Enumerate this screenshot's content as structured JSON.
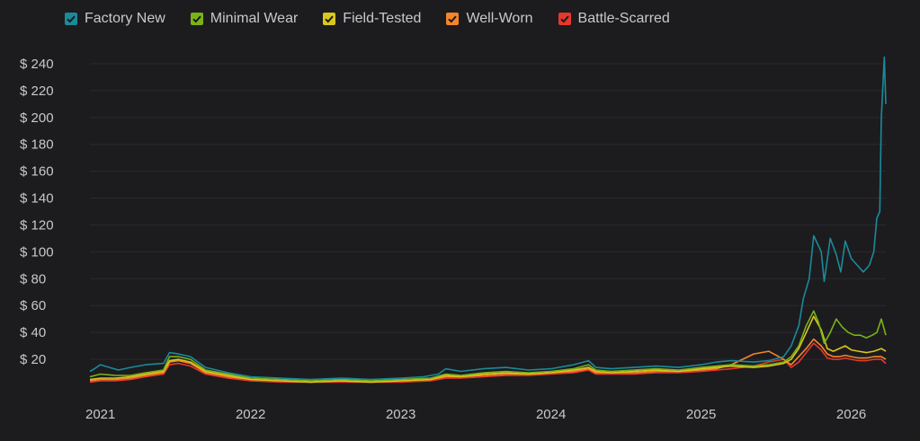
{
  "chart_data": {
    "type": "line",
    "title": "",
    "xlabel": "",
    "ylabel": "",
    "ylim": [
      0,
      250
    ],
    "grid": true,
    "legend_position": "top-left",
    "y_ticks": [
      "$ 20",
      "$ 40",
      "$ 60",
      "$ 80",
      "$ 100",
      "$ 120",
      "$ 140",
      "$ 160",
      "$ 180",
      "$ 200",
      "$ 220",
      "$ 240"
    ],
    "y_tick_values": [
      20,
      40,
      60,
      80,
      100,
      120,
      140,
      160,
      180,
      200,
      220,
      240
    ],
    "x_ticks": [
      "2021",
      "2022",
      "2023",
      "2024",
      "2025",
      "2026"
    ],
    "x_tick_values": [
      2021.0,
      2022.0,
      2023.0,
      2024.0,
      2025.0,
      2026.0
    ],
    "xlim": [
      2020.93,
      2026.23
    ],
    "series": [
      {
        "name": "Factory New",
        "color": "#1b8a9a",
        "x": [
          2020.93,
          2020.96,
          2021.0,
          2021.06,
          2021.12,
          2021.2,
          2021.3,
          2021.42,
          2021.46,
          2021.52,
          2021.6,
          2021.7,
          2021.85,
          2022.0,
          2022.2,
          2022.4,
          2022.6,
          2022.8,
          2023.0,
          2023.15,
          2023.25,
          2023.3,
          2023.4,
          2023.55,
          2023.7,
          2023.85,
          2024.0,
          2024.15,
          2024.25,
          2024.3,
          2024.4,
          2024.55,
          2024.7,
          2024.85,
          2025.0,
          2025.1,
          2025.2,
          2025.35,
          2025.45,
          2025.55,
          2025.6,
          2025.65,
          2025.68,
          2025.72,
          2025.75,
          2025.8,
          2025.82,
          2025.86,
          2025.9,
          2025.93,
          2025.96,
          2026.0,
          2026.04,
          2026.08,
          2026.12,
          2026.15,
          2026.17,
          2026.19,
          2026.2,
          2026.22,
          2026.23
        ],
        "y": [
          11,
          13,
          16,
          14,
          12,
          14,
          16,
          17,
          25,
          24,
          22,
          14,
          10,
          7,
          6,
          5,
          6,
          5,
          6,
          7,
          9,
          13,
          11,
          13,
          14,
          12,
          13,
          16,
          19,
          14,
          13,
          14,
          15,
          14,
          16,
          18,
          19,
          18,
          19,
          22,
          30,
          45,
          65,
          80,
          112,
          100,
          78,
          110,
          98,
          85,
          108,
          95,
          90,
          85,
          90,
          100,
          125,
          130,
          200,
          245,
          210
        ]
      },
      {
        "name": "Minimal Wear",
        "color": "#7ab317",
        "x": [
          2020.93,
          2021.0,
          2021.1,
          2021.2,
          2021.3,
          2021.42,
          2021.46,
          2021.52,
          2021.6,
          2021.7,
          2021.85,
          2022.0,
          2022.2,
          2022.4,
          2022.6,
          2022.8,
          2023.0,
          2023.2,
          2023.3,
          2023.4,
          2023.55,
          2023.7,
          2023.85,
          2024.0,
          2024.15,
          2024.25,
          2024.3,
          2024.4,
          2024.55,
          2024.7,
          2024.85,
          2025.0,
          2025.1,
          2025.2,
          2025.35,
          2025.45,
          2025.55,
          2025.6,
          2025.65,
          2025.7,
          2025.75,
          2025.78,
          2025.82,
          2025.86,
          2025.9,
          2025.94,
          2025.98,
          2026.02,
          2026.06,
          2026.1,
          2026.14,
          2026.17,
          2026.2,
          2026.23
        ],
        "y": [
          7,
          9,
          8,
          8,
          10,
          12,
          22,
          22,
          20,
          12,
          9,
          6,
          5,
          4,
          5,
          4,
          5,
          6,
          9,
          8,
          10,
          11,
          10,
          11,
          13,
          16,
          12,
          11,
          12,
          13,
          12,
          14,
          15,
          16,
          15,
          16,
          18,
          22,
          30,
          45,
          56,
          48,
          32,
          40,
          50,
          44,
          40,
          38,
          38,
          36,
          38,
          40,
          50,
          38
        ]
      },
      {
        "name": "Field-Tested",
        "color": "#d9c71e",
        "x": [
          2020.93,
          2021.0,
          2021.1,
          2021.2,
          2021.3,
          2021.42,
          2021.46,
          2021.52,
          2021.6,
          2021.7,
          2021.85,
          2022.0,
          2022.2,
          2022.4,
          2022.6,
          2022.8,
          2023.0,
          2023.2,
          2023.3,
          2023.4,
          2023.55,
          2023.7,
          2023.85,
          2024.0,
          2024.15,
          2024.25,
          2024.3,
          2024.4,
          2024.55,
          2024.7,
          2024.85,
          2025.0,
          2025.1,
          2025.2,
          2025.35,
          2025.45,
          2025.55,
          2025.6,
          2025.65,
          2025.7,
          2025.75,
          2025.8,
          2025.84,
          2025.88,
          2025.92,
          2025.96,
          2026.0,
          2026.05,
          2026.1,
          2026.15,
          2026.2,
          2026.23
        ],
        "y": [
          5,
          6,
          6,
          7,
          9,
          11,
          19,
          20,
          18,
          11,
          8,
          5,
          4,
          3,
          4,
          3,
          4,
          5,
          8,
          7,
          9,
          10,
          9,
          10,
          12,
          14,
          11,
          10,
          11,
          12,
          11,
          13,
          14,
          15,
          14,
          15,
          17,
          20,
          28,
          40,
          52,
          42,
          28,
          26,
          28,
          30,
          27,
          26,
          25,
          26,
          28,
          26
        ]
      },
      {
        "name": "Well-Worn",
        "color": "#f5852a",
        "x": [
          2020.93,
          2021.0,
          2021.1,
          2021.2,
          2021.3,
          2021.42,
          2021.46,
          2021.52,
          2021.6,
          2021.7,
          2021.85,
          2022.0,
          2022.2,
          2022.4,
          2022.6,
          2022.8,
          2023.0,
          2023.2,
          2023.3,
          2023.4,
          2023.55,
          2023.7,
          2023.85,
          2024.0,
          2024.15,
          2024.25,
          2024.3,
          2024.4,
          2024.55,
          2024.7,
          2024.85,
          2025.0,
          2025.1,
          2025.2,
          2025.35,
          2025.45,
          2025.55,
          2025.6,
          2025.65,
          2025.7,
          2025.75,
          2025.8,
          2025.84,
          2025.88,
          2025.92,
          2025.96,
          2026.0,
          2026.05,
          2026.1,
          2026.15,
          2026.2,
          2026.23
        ],
        "y": [
          4,
          5,
          5,
          6,
          8,
          10,
          18,
          19,
          17,
          10,
          7,
          5,
          4,
          3,
          4,
          3,
          4,
          5,
          7,
          7,
          8,
          9,
          9,
          10,
          11,
          13,
          10,
          10,
          10,
          11,
          11,
          12,
          13,
          16,
          24,
          26,
          20,
          16,
          22,
          28,
          35,
          30,
          24,
          22,
          22,
          23,
          22,
          21,
          21,
          22,
          22,
          20
        ]
      },
      {
        "name": "Battle-Scarred",
        "color": "#e8372c",
        "x": [
          2020.93,
          2021.0,
          2021.1,
          2021.2,
          2021.3,
          2021.42,
          2021.46,
          2021.52,
          2021.6,
          2021.7,
          2021.85,
          2022.0,
          2022.2,
          2022.4,
          2022.6,
          2022.8,
          2023.0,
          2023.2,
          2023.3,
          2023.4,
          2023.55,
          2023.7,
          2023.85,
          2024.0,
          2024.15,
          2024.25,
          2024.3,
          2024.4,
          2024.55,
          2024.7,
          2024.85,
          2025.0,
          2025.1,
          2025.2,
          2025.35,
          2025.45,
          2025.55,
          2025.6,
          2025.65,
          2025.7,
          2025.75,
          2025.8,
          2025.84,
          2025.88,
          2025.92,
          2025.96,
          2026.0,
          2026.05,
          2026.1,
          2026.15,
          2026.2,
          2026.23
        ],
        "y": [
          3,
          4,
          4,
          5,
          7,
          9,
          16,
          17,
          15,
          9,
          6,
          4,
          3,
          3,
          3,
          3,
          3,
          4,
          6,
          6,
          7,
          8,
          8,
          9,
          10,
          12,
          9,
          9,
          9,
          10,
          10,
          11,
          12,
          13,
          15,
          18,
          20,
          14,
          18,
          25,
          32,
          27,
          21,
          20,
          20,
          21,
          20,
          19,
          19,
          20,
          20,
          17
        ]
      }
    ]
  }
}
